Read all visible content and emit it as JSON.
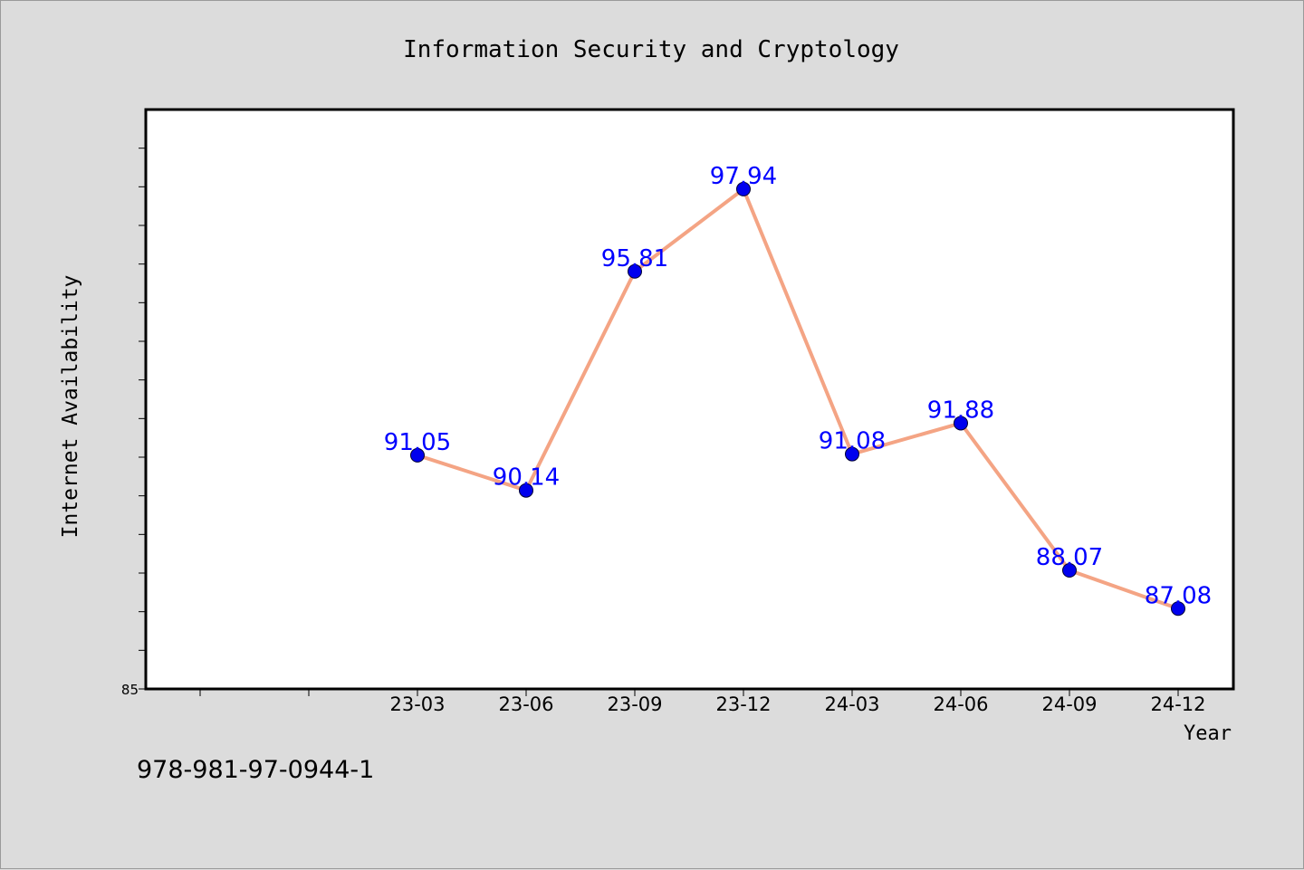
{
  "chart_data": {
    "type": "line",
    "title": "Information Security and Cryptology",
    "xlabel": "Year",
    "ylabel": "Internet Availability",
    "categories": [
      "23-03",
      "23-06",
      "23-09",
      "23-12",
      "24-03",
      "24-06",
      "24-09",
      "24-12"
    ],
    "series": [
      {
        "values": [
          91.05,
          90.14,
          95.81,
          97.94,
          91.08,
          91.88,
          88.07,
          87.08
        ],
        "data_labels": [
          "91.05",
          "90.14",
          "95.81",
          "97.94",
          "91.08",
          "91.88",
          "88.07",
          "87.08"
        ],
        "line_color": "#f4a484",
        "marker_color": "#0000ee",
        "label_color": "#0000ff"
      }
    ],
    "ylim": [
      85,
      100
    ],
    "y_tick_labels": [
      "85"
    ],
    "legend": "none",
    "grid": false
  },
  "footer": {
    "isbn": "978-981-97-0944-1"
  }
}
